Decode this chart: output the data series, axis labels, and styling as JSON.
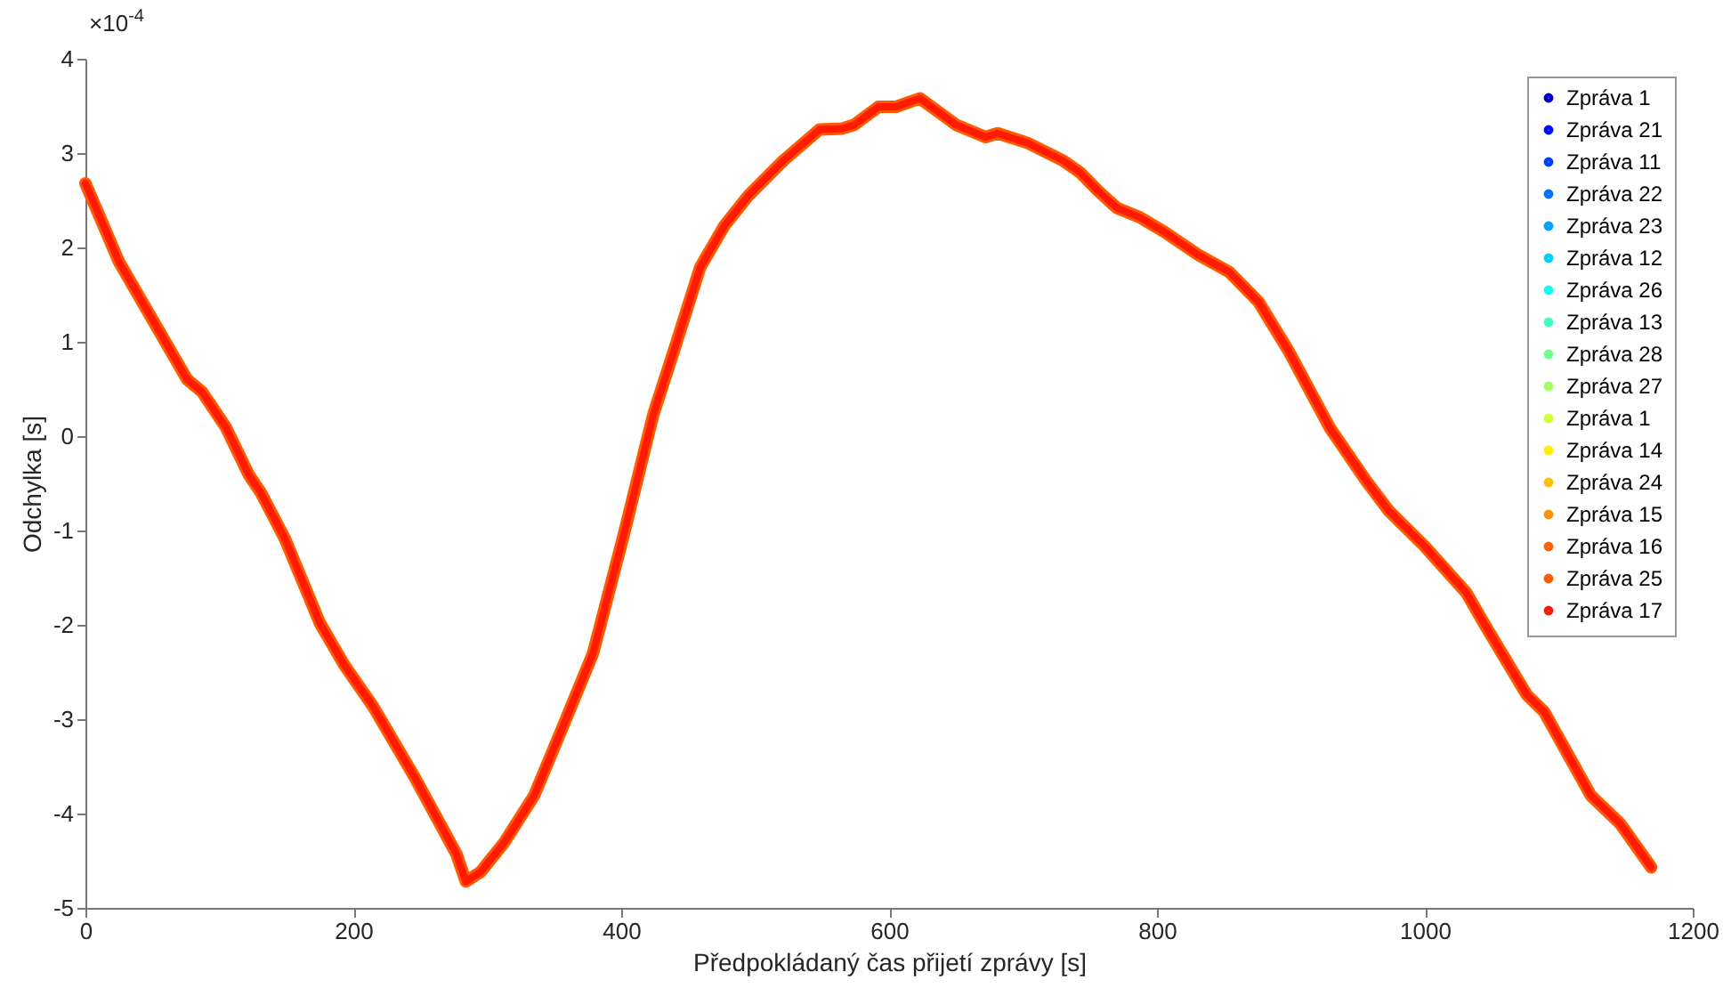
{
  "chart_data": {
    "type": "line",
    "xlabel": "Předpokládaný čas přijetí zprávy [s]",
    "ylabel": "Odchylka [s]",
    "annotations": [
      "×10$^{-4}$"
    ],
    "xlim": [
      0,
      1200
    ],
    "xticks": [
      0,
      200,
      400,
      600,
      800,
      1000,
      1200
    ],
    "ylim": [
      -5,
      4
    ],
    "yticks": [
      -5,
      -4,
      -3,
      -2,
      -1,
      0,
      1,
      2,
      3,
      4
    ],
    "legend": "top right",
    "grid": false,
    "x": [
      0,
      25,
      56,
      76,
      87,
      105,
      122,
      131,
      149,
      175,
      193,
      215,
      246,
      277,
      284,
      295,
      313,
      335,
      357,
      379,
      402,
      424,
      441,
      459,
      477,
      495,
      521,
      548,
      565,
      574,
      592,
      605,
      623,
      650,
      672,
      681,
      703,
      730,
      743,
      756,
      770,
      787,
      805,
      831,
      854,
      876,
      898,
      929,
      956,
      973,
      1000,
      1031,
      1044,
      1076,
      1089,
      1124,
      1146,
      1169
    ],
    "series": [
      {
        "name": "Zpráva 1",
        "color": "#0000c8",
        "values": [
          null,
          null,
          null,
          null,
          null,
          null,
          null,
          null,
          null,
          null,
          null,
          null,
          null,
          null,
          null,
          null,
          null,
          null,
          null,
          null,
          null,
          null,
          null,
          null,
          null,
          null,
          null,
          null,
          null,
          null,
          null,
          null,
          null,
          null,
          null,
          null,
          null,
          null,
          null,
          null,
          null,
          null,
          null,
          null,
          null,
          null,
          null,
          null,
          null,
          null,
          null,
          null,
          null,
          null,
          null,
          null,
          null,
          null
        ]
      },
      {
        "name": "Zpráva 21",
        "color": "#0010ff",
        "values": [
          null,
          null,
          null,
          null,
          null,
          null,
          null,
          null,
          null,
          null,
          null,
          null,
          null,
          null,
          null,
          null,
          null,
          null,
          null,
          null,
          null,
          null,
          null,
          null,
          null,
          null,
          null,
          null,
          null,
          null,
          null,
          null,
          null,
          null,
          null,
          null,
          null,
          null,
          null,
          null,
          null,
          null,
          null,
          null,
          null,
          null,
          null,
          null,
          null,
          null,
          null,
          null,
          null,
          null,
          null,
          null,
          null,
          null
        ]
      },
      {
        "name": "Zpráva 11",
        "color": "#0040ff",
        "values": [
          null,
          null,
          null,
          null,
          null,
          null,
          null,
          null,
          null,
          null,
          null,
          null,
          null,
          null,
          null,
          null,
          null,
          null,
          null,
          null,
          null,
          null,
          null,
          null,
          null,
          null,
          null,
          null,
          null,
          null,
          null,
          null,
          null,
          null,
          null,
          null,
          null,
          null,
          null,
          null,
          null,
          null,
          null,
          null,
          null,
          null,
          null,
          null,
          null,
          null,
          null,
          null,
          null,
          null,
          null,
          null,
          null,
          null
        ]
      },
      {
        "name": "Zpráva 22",
        "color": "#0070ff",
        "values": [
          null,
          null,
          null,
          null,
          null,
          null,
          null,
          null,
          null,
          null,
          null,
          null,
          null,
          null,
          null,
          null,
          null,
          null,
          null,
          null,
          null,
          null,
          null,
          null,
          null,
          null,
          null,
          null,
          null,
          null,
          null,
          null,
          null,
          null,
          null,
          null,
          null,
          null,
          null,
          null,
          null,
          null,
          null,
          null,
          null,
          null,
          null,
          null,
          null,
          null,
          null,
          null,
          null,
          null,
          null,
          null,
          null,
          null
        ]
      },
      {
        "name": "Zpráva 23",
        "color": "#00a0ff",
        "values": [
          null,
          null,
          null,
          null,
          null,
          null,
          null,
          null,
          null,
          null,
          null,
          null,
          null,
          null,
          null,
          null,
          null,
          null,
          null,
          null,
          null,
          null,
          null,
          null,
          null,
          null,
          null,
          null,
          null,
          null,
          null,
          null,
          null,
          null,
          null,
          null,
          null,
          null,
          null,
          null,
          null,
          null,
          null,
          null,
          null,
          null,
          null,
          null,
          null,
          null,
          null,
          null,
          null,
          null,
          null,
          null,
          null,
          null
        ]
      },
      {
        "name": "Zpráva 12",
        "color": "#00d0ff",
        "values": [
          null,
          null,
          null,
          null,
          null,
          null,
          null,
          null,
          null,
          null,
          null,
          null,
          null,
          null,
          null,
          null,
          null,
          null,
          null,
          null,
          null,
          null,
          null,
          null,
          null,
          null,
          null,
          null,
          null,
          null,
          null,
          null,
          null,
          null,
          null,
          null,
          null,
          null,
          null,
          null,
          null,
          null,
          null,
          null,
          null,
          null,
          null,
          null,
          null,
          null,
          null,
          null,
          null,
          null,
          null,
          null,
          null,
          null
        ]
      },
      {
        "name": "Zpráva 26",
        "color": "#10ffef",
        "values": [
          null,
          null,
          null,
          null,
          null,
          null,
          null,
          null,
          null,
          null,
          null,
          null,
          null,
          null,
          null,
          null,
          null,
          null,
          null,
          null,
          null,
          null,
          null,
          null,
          null,
          null,
          null,
          null,
          null,
          null,
          null,
          null,
          null,
          null,
          null,
          null,
          null,
          null,
          null,
          null,
          null,
          null,
          null,
          null,
          null,
          null,
          null,
          null,
          null,
          null,
          null,
          null,
          null,
          null,
          null,
          null,
          null,
          null
        ]
      },
      {
        "name": "Zpráva 13",
        "color": "#40ffbf",
        "values": [
          null,
          null,
          null,
          null,
          null,
          null,
          null,
          null,
          null,
          null,
          null,
          null,
          null,
          null,
          null,
          null,
          null,
          null,
          null,
          null,
          null,
          null,
          null,
          null,
          null,
          null,
          null,
          null,
          null,
          null,
          null,
          null,
          null,
          null,
          null,
          null,
          null,
          null,
          null,
          null,
          null,
          null,
          null,
          null,
          null,
          null,
          null,
          null,
          null,
          null,
          null,
          null,
          null,
          null,
          null,
          null,
          null,
          null
        ]
      },
      {
        "name": "Zpráva 28",
        "color": "#70ff8f",
        "values": [
          null,
          null,
          null,
          null,
          null,
          null,
          null,
          null,
          null,
          null,
          null,
          null,
          null,
          null,
          null,
          null,
          null,
          null,
          null,
          null,
          null,
          null,
          null,
          null,
          null,
          null,
          null,
          null,
          null,
          null,
          null,
          null,
          null,
          null,
          null,
          null,
          null,
          null,
          null,
          null,
          null,
          null,
          null,
          null,
          null,
          null,
          null,
          null,
          null,
          null,
          null,
          null,
          null,
          null,
          null,
          null,
          null,
          null
        ]
      },
      {
        "name": "Zpráva 27",
        "color": "#a0ff60",
        "values": [
          null,
          null,
          null,
          null,
          null,
          null,
          null,
          null,
          null,
          null,
          null,
          null,
          null,
          null,
          null,
          null,
          null,
          null,
          null,
          null,
          null,
          null,
          null,
          null,
          null,
          null,
          null,
          null,
          null,
          null,
          null,
          null,
          null,
          null,
          null,
          null,
          null,
          null,
          null,
          null,
          null,
          null,
          null,
          null,
          null,
          null,
          null,
          null,
          null,
          null,
          null,
          null,
          null,
          null,
          null,
          null,
          null,
          null
        ]
      },
      {
        "name": "Zpráva 1",
        "color": "#d0ff30",
        "values": [
          null,
          null,
          null,
          null,
          null,
          null,
          null,
          null,
          null,
          null,
          null,
          null,
          null,
          null,
          null,
          null,
          null,
          null,
          null,
          null,
          null,
          null,
          null,
          null,
          null,
          null,
          null,
          null,
          null,
          null,
          null,
          null,
          null,
          null,
          null,
          null,
          null,
          null,
          null,
          null,
          null,
          null,
          null,
          null,
          null,
          null,
          null,
          null,
          null,
          null,
          null,
          null,
          null,
          null,
          null,
          null,
          null,
          null
        ]
      },
      {
        "name": "Zpráva 14",
        "color": "#ffef00",
        "values": [
          null,
          null,
          null,
          null,
          null,
          null,
          null,
          null,
          null,
          null,
          null,
          null,
          null,
          null,
          null,
          null,
          null,
          null,
          null,
          null,
          null,
          null,
          null,
          null,
          null,
          null,
          null,
          null,
          null,
          null,
          null,
          null,
          null,
          null,
          null,
          null,
          null,
          null,
          null,
          null,
          null,
          null,
          null,
          null,
          null,
          null,
          null,
          null,
          null,
          null,
          null,
          null,
          null,
          null,
          null,
          null,
          null,
          null
        ]
      },
      {
        "name": "Zpráva 24",
        "color": "#ffbf00",
        "values": [
          null,
          null,
          null,
          null,
          null,
          null,
          null,
          null,
          null,
          null,
          null,
          null,
          null,
          null,
          null,
          null,
          null,
          null,
          null,
          null,
          null,
          null,
          null,
          null,
          null,
          null,
          null,
          null,
          null,
          null,
          null,
          null,
          null,
          null,
          null,
          null,
          null,
          null,
          null,
          null,
          null,
          null,
          null,
          null,
          null,
          null,
          null,
          null,
          null,
          null,
          null,
          null,
          null,
          null,
          null,
          null,
          null,
          null
        ]
      },
      {
        "name": "Zpráva 15",
        "color": "#ff9000",
        "values": [
          null,
          null,
          null,
          null,
          null,
          null,
          null,
          null,
          null,
          null,
          null,
          null,
          null,
          null,
          null,
          null,
          null,
          null,
          null,
          null,
          null,
          null,
          null,
          null,
          null,
          null,
          null,
          null,
          null,
          null,
          null,
          null,
          null,
          null,
          null,
          null,
          null,
          null,
          null,
          null,
          null,
          null,
          null,
          null,
          null,
          null,
          null,
          null,
          null,
          null,
          null,
          null,
          null,
          null,
          null,
          null,
          null,
          null
        ]
      },
      {
        "name": "Zpráva 16",
        "color": "#ff6000",
        "values": [
          null,
          null,
          null,
          null,
          null,
          null,
          null,
          null,
          null,
          null,
          null,
          null,
          null,
          null,
          null,
          null,
          null,
          null,
          null,
          null,
          null,
          null,
          null,
          null,
          null,
          null,
          null,
          null,
          null,
          null,
          null,
          null,
          null,
          null,
          null,
          null,
          null,
          null,
          null,
          null,
          null,
          null,
          null,
          null,
          null,
          null,
          null,
          null,
          null,
          null,
          null,
          null,
          null,
          null,
          null,
          null,
          null,
          null
        ]
      },
      {
        "name": "Zpráva 25",
        "color": "#ff5a00",
        "values": [
          2.68,
          1.85,
          1.09,
          0.6,
          0.47,
          0.09,
          -0.41,
          -0.6,
          -1.09,
          -1.98,
          -2.42,
          -2.87,
          -3.62,
          -4.43,
          -4.72,
          -4.62,
          -4.3,
          -3.81,
          -3.06,
          -2.3,
          -1.04,
          0.23,
          0.98,
          1.79,
          2.23,
          2.55,
          2.92,
          3.25,
          3.26,
          3.3,
          3.49,
          3.49,
          3.58,
          3.3,
          3.17,
          3.21,
          3.11,
          2.92,
          2.79,
          2.6,
          2.42,
          2.32,
          2.17,
          1.92,
          1.74,
          1.42,
          0.91,
          0.09,
          -0.47,
          -0.79,
          -1.17,
          -1.66,
          -1.98,
          -2.74,
          -2.92,
          -3.81,
          -4.11,
          -4.57
        ]
      },
      {
        "name": "Zpráva 17",
        "color": "#ff1a00",
        "values": [
          2.68,
          1.85,
          1.09,
          0.6,
          0.47,
          0.09,
          -0.41,
          -0.6,
          -1.09,
          -1.98,
          -2.42,
          -2.87,
          -3.62,
          -4.43,
          -4.72,
          -4.62,
          -4.3,
          -3.81,
          -3.06,
          -2.3,
          -1.04,
          0.23,
          0.98,
          1.79,
          2.23,
          2.55,
          2.92,
          3.25,
          3.26,
          3.3,
          3.49,
          3.49,
          3.58,
          3.3,
          3.17,
          3.21,
          3.11,
          2.92,
          2.79,
          2.6,
          2.42,
          2.32,
          2.17,
          1.92,
          1.74,
          1.42,
          0.91,
          0.09,
          -0.47,
          -0.79,
          -1.17,
          -1.66,
          -1.98,
          -2.74,
          -2.92,
          -3.81,
          -4.11,
          -4.57
        ]
      }
    ]
  }
}
